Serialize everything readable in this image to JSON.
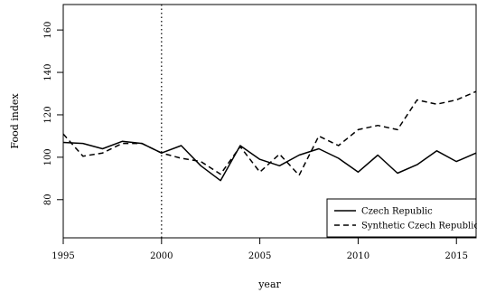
{
  "chart_data": {
    "type": "line",
    "xlabel": "year",
    "ylabel": "Food index",
    "xlim": [
      1995,
      2016
    ],
    "ylim": [
      62,
      172
    ],
    "x_ticks": [
      1995,
      2000,
      2005,
      2010,
      2015
    ],
    "y_ticks": [
      80,
      100,
      120,
      140,
      160
    ],
    "vline": 2000,
    "legend_position": "bottom-right",
    "x": [
      1995,
      1996,
      1997,
      1998,
      1999,
      2000,
      2001,
      2002,
      2003,
      2004,
      2005,
      2006,
      2007,
      2008,
      2009,
      2010,
      2011,
      2012,
      2013,
      2014,
      2015,
      2016
    ],
    "series": [
      {
        "name": "Czech Republic",
        "style": "solid",
        "values": [
          107,
          106.5,
          104,
          107.5,
          106.5,
          102,
          105.5,
          96,
          89,
          105.5,
          99,
          96,
          101,
          104,
          99.5,
          93,
          101,
          92.5,
          96.5,
          103,
          98,
          102
        ]
      },
      {
        "name": "Synthetic Czech Republic",
        "style": "dashed",
        "values": [
          111,
          100.5,
          102,
          106.5,
          106.5,
          102,
          99.5,
          98,
          92,
          105,
          93,
          101.5,
          91.5,
          110,
          105.5,
          113,
          115,
          113,
          127,
          125,
          127,
          131
        ]
      }
    ]
  }
}
